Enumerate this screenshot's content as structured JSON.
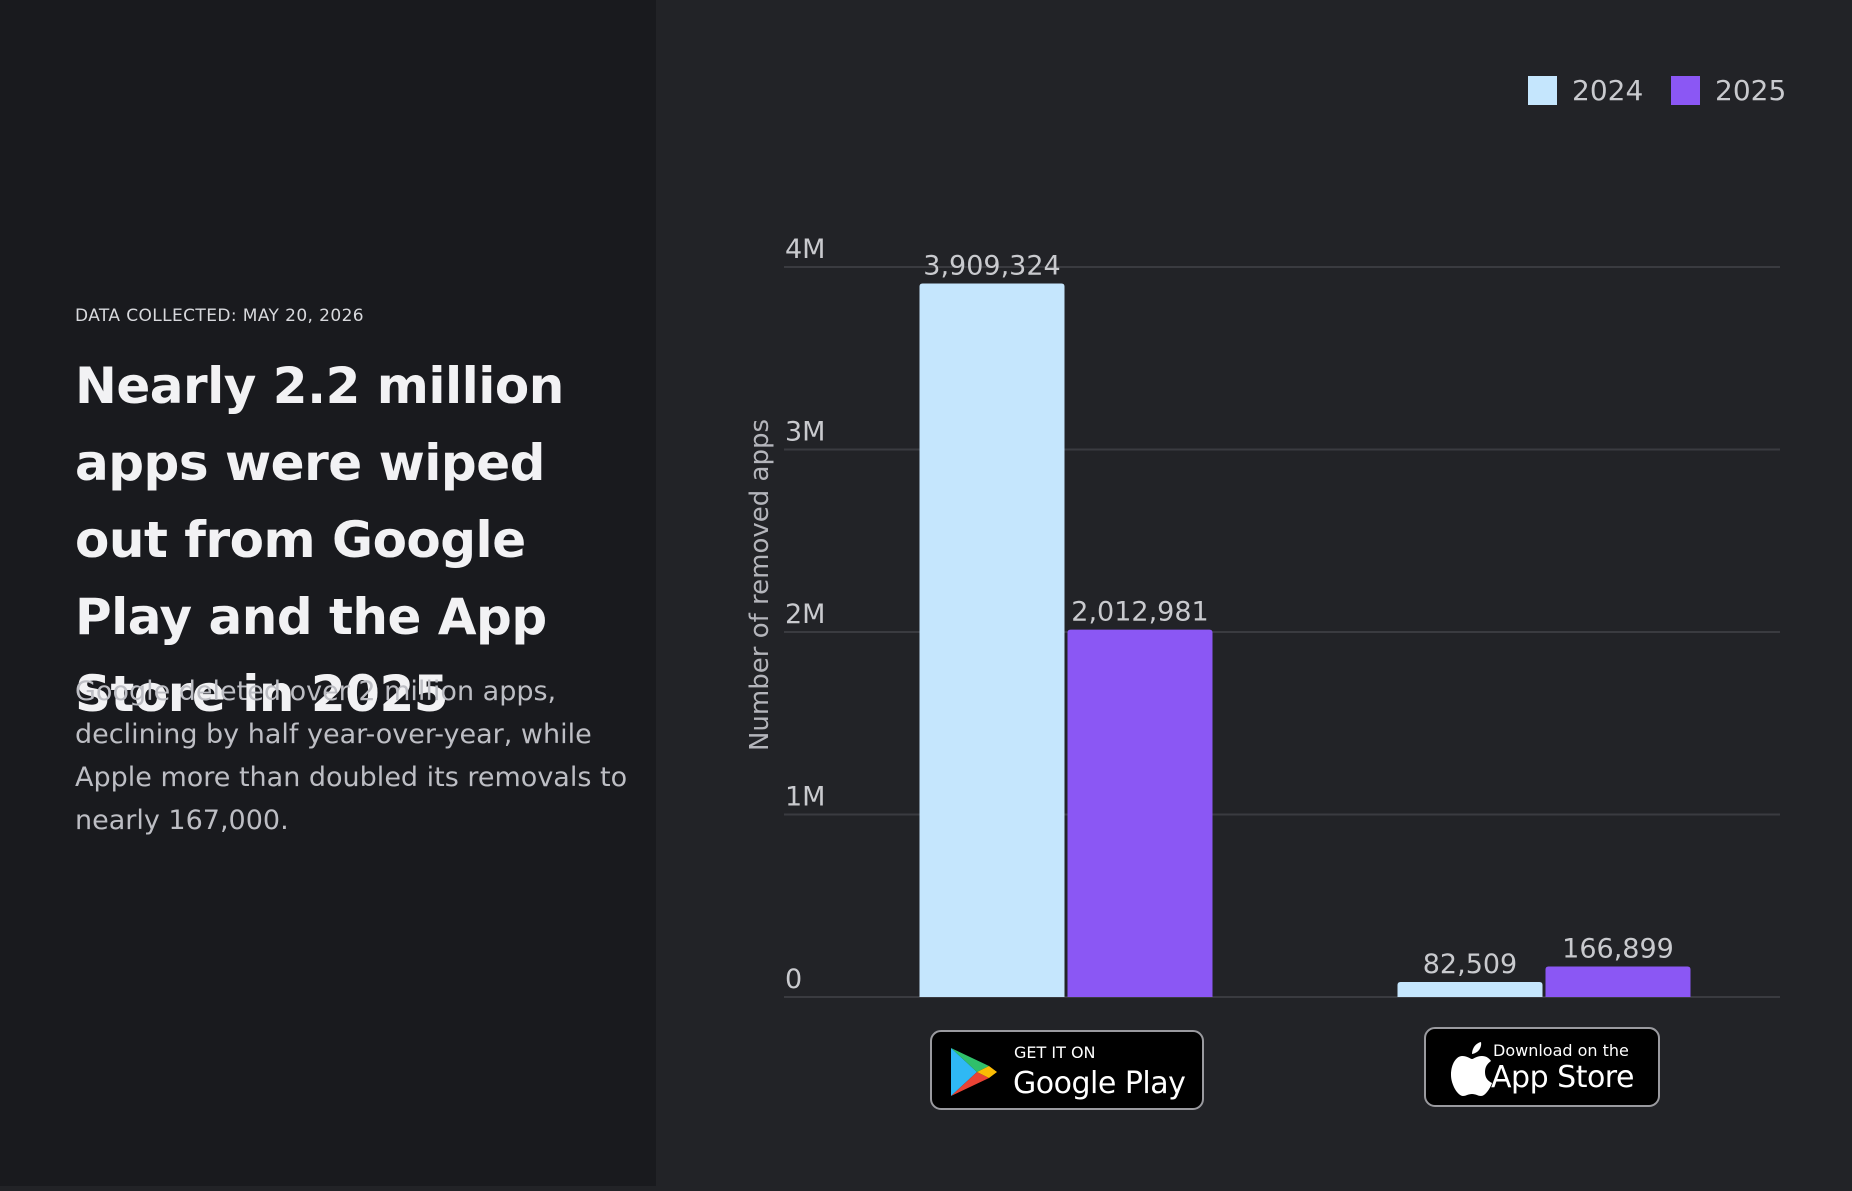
{
  "left": {
    "meta": "DATA COLLECTED: MAY 20, 2026",
    "headline": "Nearly 2.2 million apps were wiped out from Google Play and the App Store in 2025",
    "subtitle": "Google deleted over 2 million apps, declining by half year-over-year, while Apple more than doubled its removals to nearly 167,000."
  },
  "badges": {
    "google": {
      "top": "GET IT ON",
      "main": "Google Play"
    },
    "apple": {
      "top": "Download on the",
      "main": "App Store"
    }
  },
  "colors": {
    "y2024": "#c5e6fd",
    "y2025": "#8b57f4",
    "grid": "#3a3b40",
    "text": "#c9cace"
  },
  "chart_data": {
    "type": "bar",
    "categories": [
      "Google Play",
      "App Store"
    ],
    "series": [
      {
        "name": "2024",
        "values": [
          3909324,
          82509
        ],
        "labels": [
          "3,909,324",
          "82,509"
        ]
      },
      {
        "name": "2025",
        "values": [
          2012981,
          166899
        ],
        "labels": [
          "2,012,981",
          "166,899"
        ]
      }
    ],
    "ylabel": "Number of removed apps",
    "ylim": [
      0,
      4000000
    ],
    "yticks": [
      0,
      1000000,
      2000000,
      3000000,
      4000000
    ],
    "ytick_labels": [
      "0",
      "1M",
      "2M",
      "3M",
      "4M"
    ],
    "grid": true,
    "legend": "top-right"
  }
}
